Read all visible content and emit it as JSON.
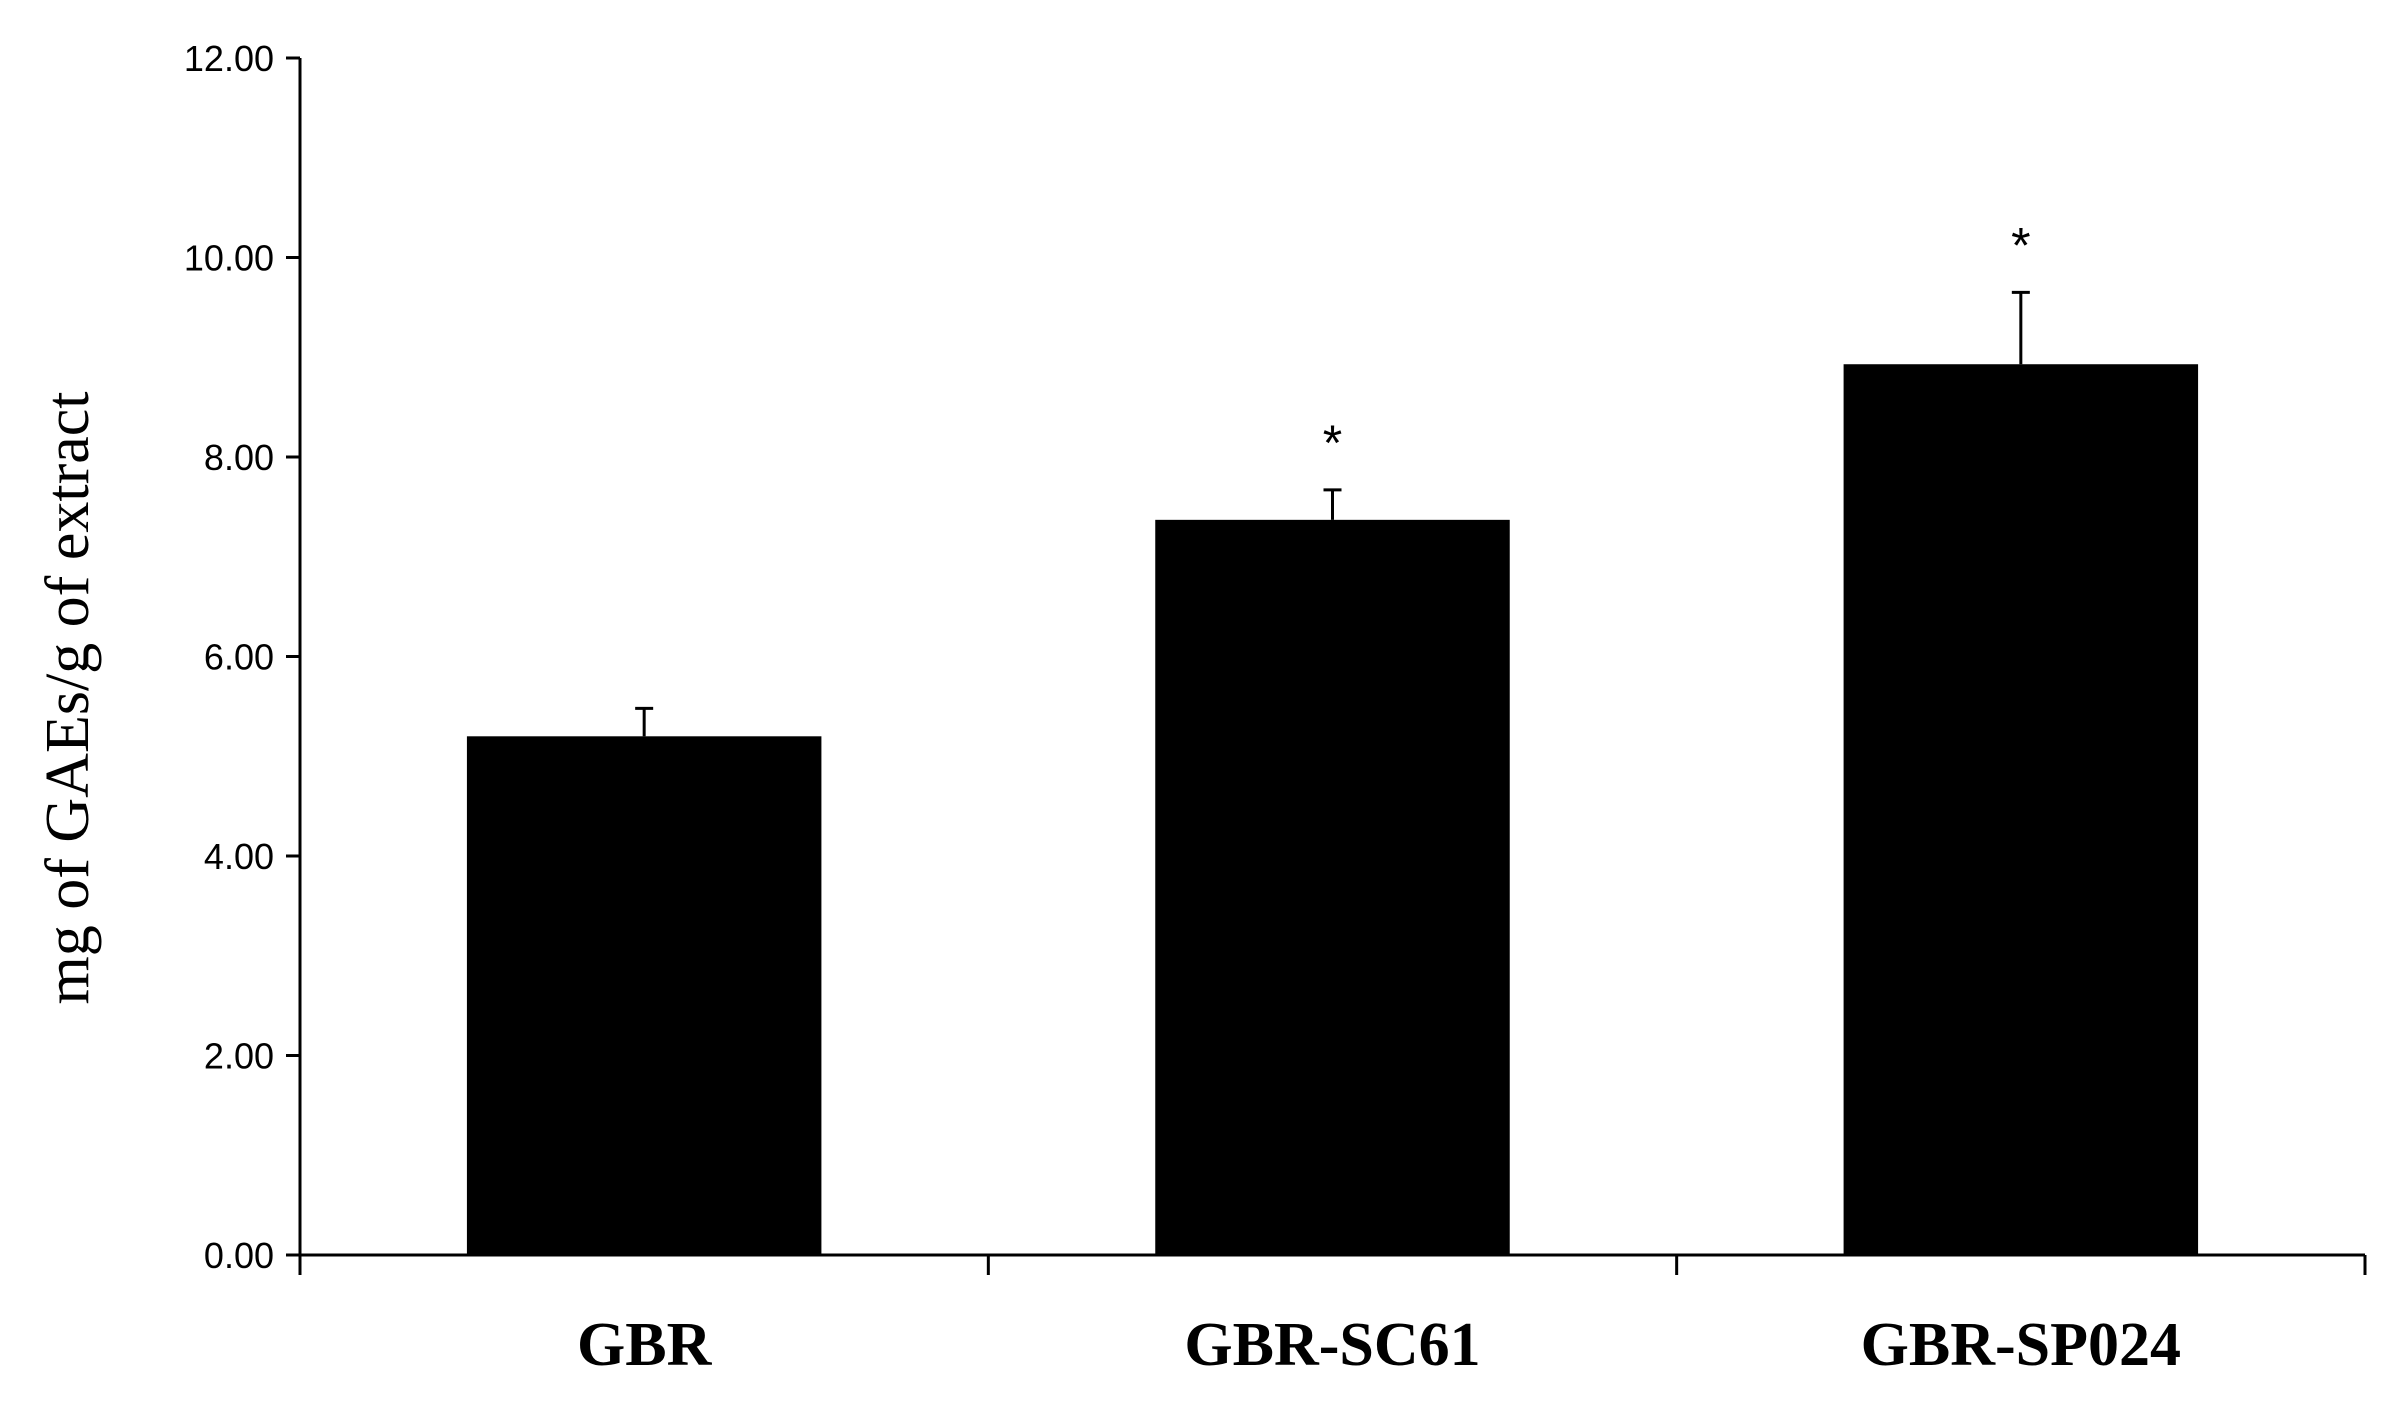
{
  "chart_data": {
    "type": "bar",
    "title": "",
    "xlabel": "",
    "ylabel": "mg of GAEs/g of extract",
    "ylim": [
      0,
      12
    ],
    "yticks": [
      "0.00",
      "2.00",
      "4.00",
      "6.00",
      "8.00",
      "10.00",
      "12.00"
    ],
    "categories": [
      "GBR",
      "GBR-SC61",
      "GBR-SP024"
    ],
    "values": [
      5.2,
      7.37,
      8.93
    ],
    "error_plus": [
      0.28,
      0.3,
      0.72
    ],
    "significance": [
      "",
      "*",
      "*"
    ],
    "bar_color": "#000000",
    "grid": false,
    "legend": "none"
  }
}
